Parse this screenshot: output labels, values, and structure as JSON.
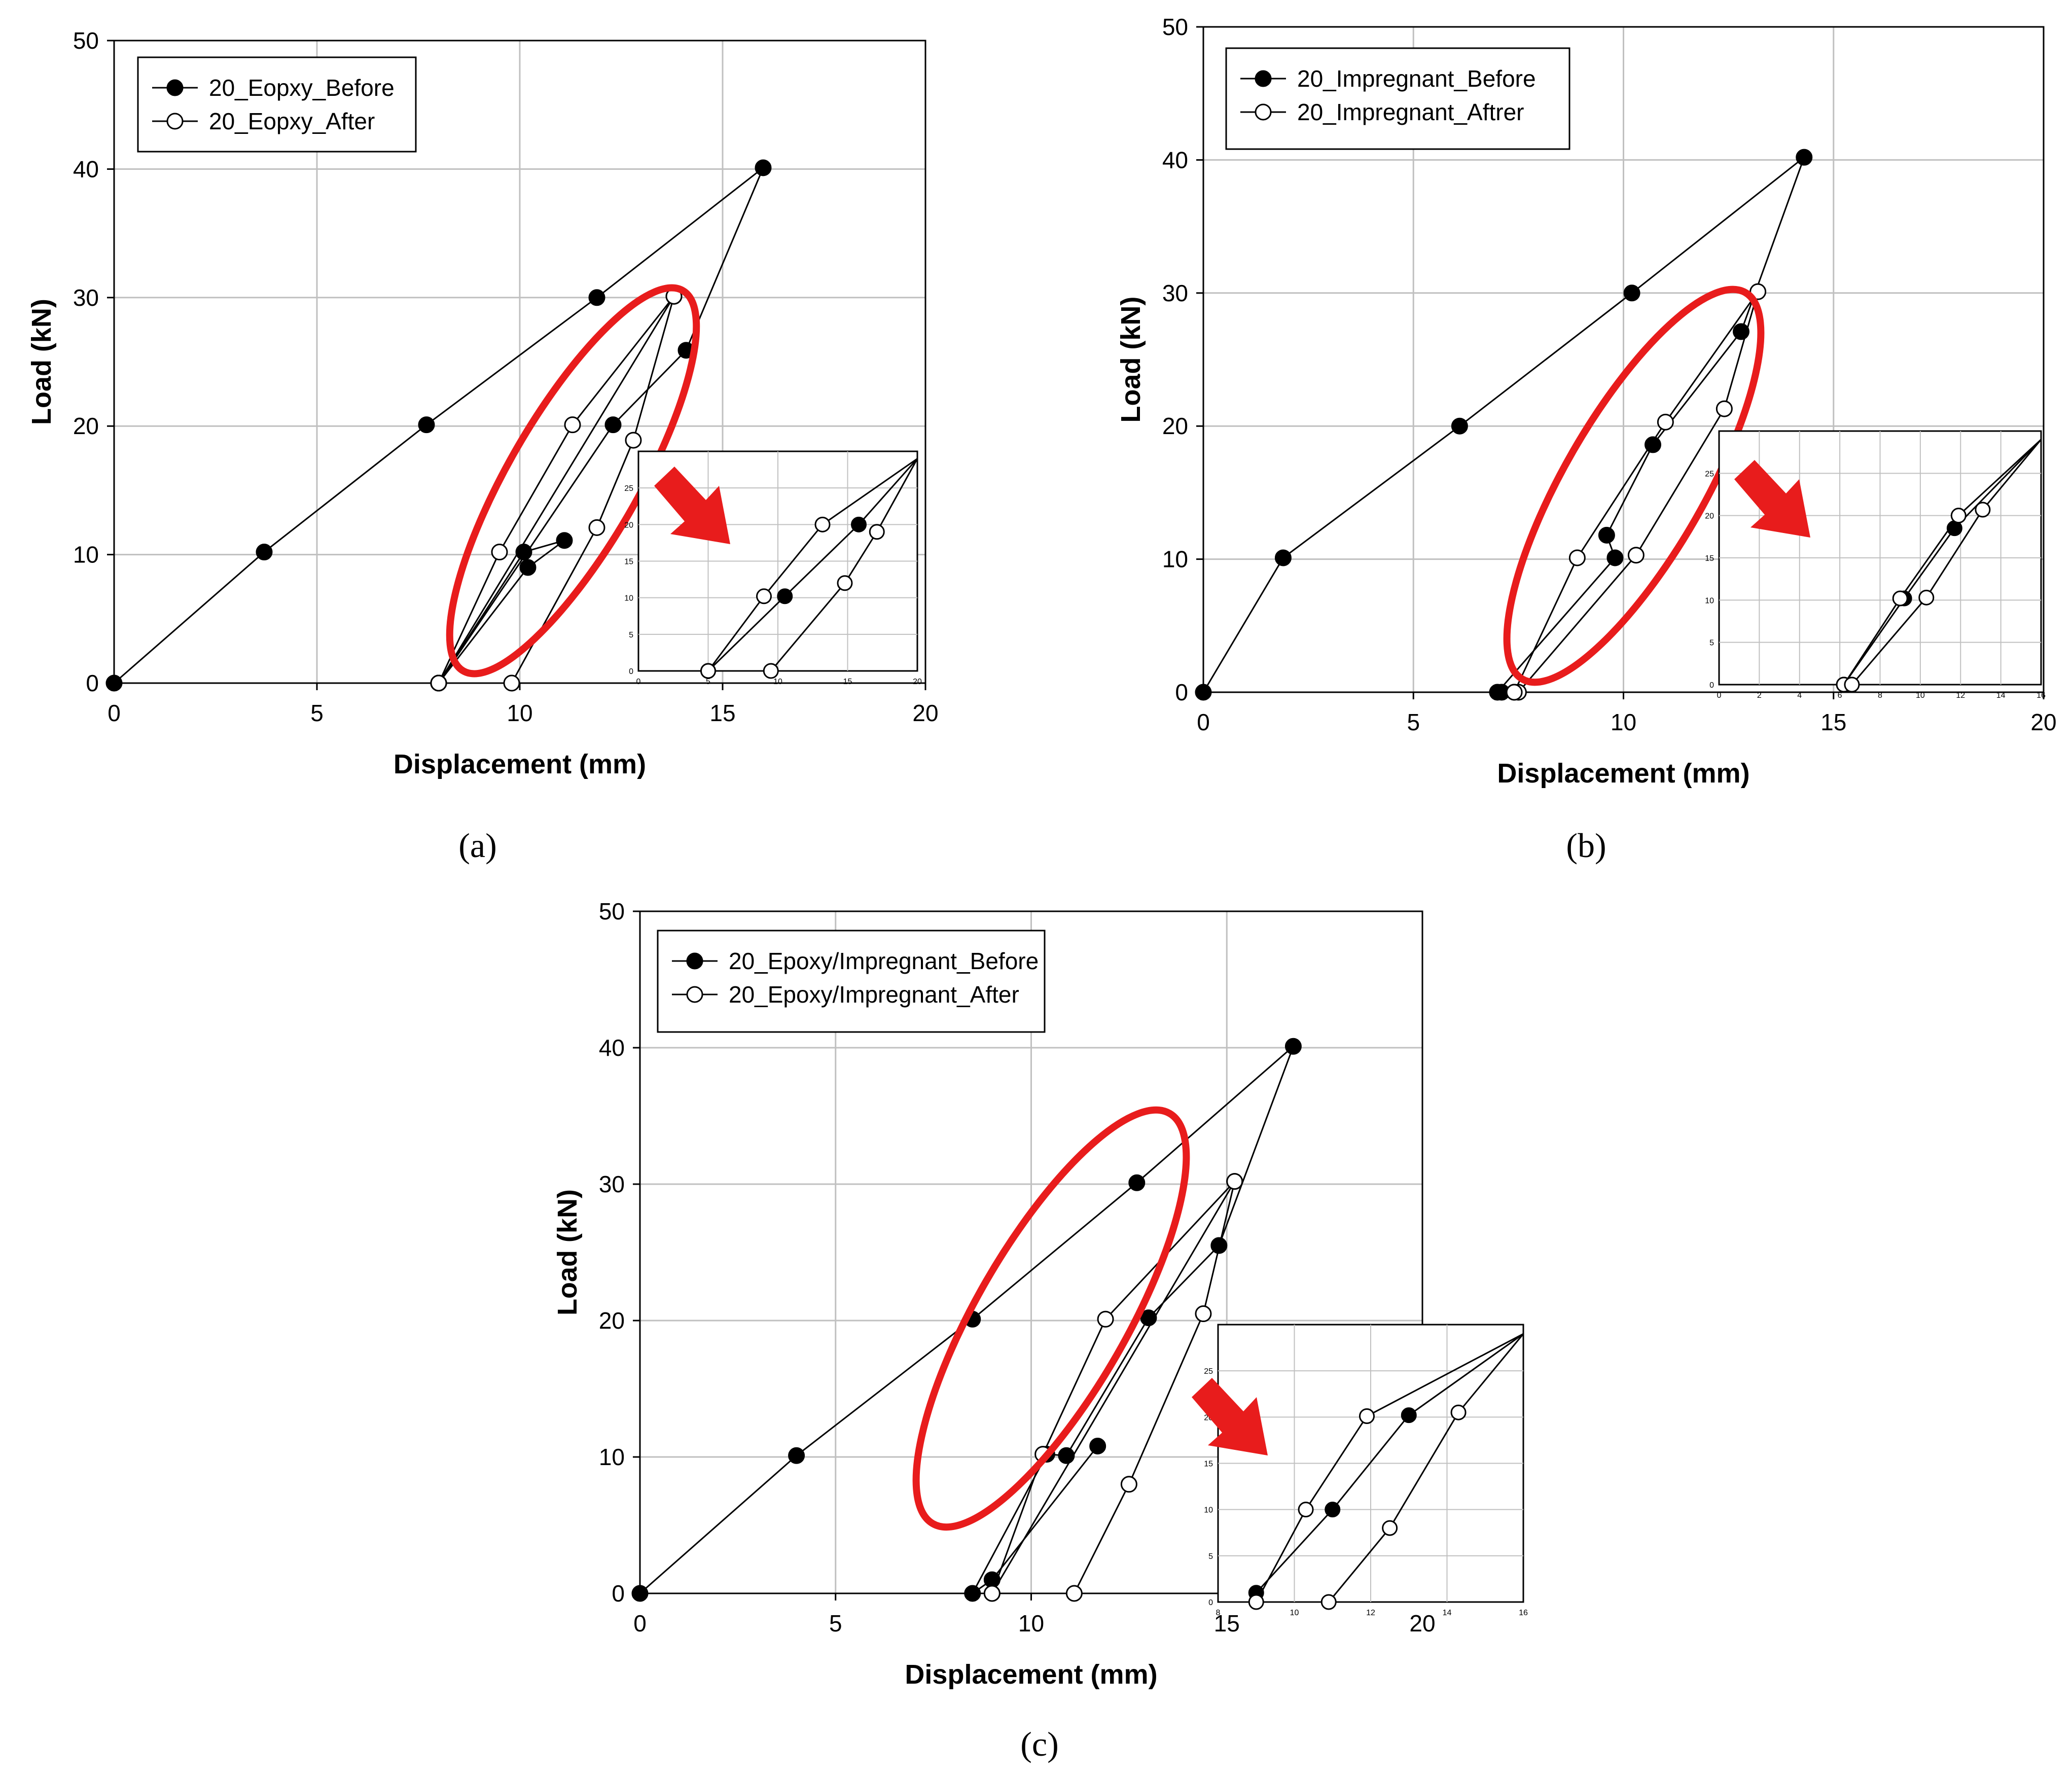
{
  "figure": {
    "sublabels": [
      "(a)",
      "(b)",
      "(c)"
    ]
  },
  "colors": {
    "highlight": "#e81c1c",
    "grid": "#c0c0c0",
    "ink": "#000000"
  },
  "chart_data": [
    {
      "type": "line",
      "panel": "(a)",
      "xlabel": "Displacement (mm)",
      "ylabel": "Load (kN)",
      "xlim": [
        0,
        20
      ],
      "ylim": [
        0,
        50
      ],
      "xticks": [
        "0",
        "5",
        "10",
        "15",
        "20"
      ],
      "yticks": [
        "0",
        "10",
        "20",
        "30",
        "40",
        "50"
      ],
      "grid": true,
      "legend_position": "top-left",
      "series": [
        {
          "name": "20_Eopxy_Before",
          "marker": "filled-circle",
          "x": [
            0,
            3.7,
            7.7,
            11.9,
            16.0,
            14.1,
            12.3,
            8.0,
            10.2,
            11.1,
            10.1,
            8.0
          ],
          "y": [
            0,
            10.2,
            20.1,
            30.0,
            40.1,
            25.9,
            20.1,
            0,
            9.0,
            11.1,
            10.2,
            0
          ]
        },
        {
          "name": "20_Eopxy_After",
          "marker": "open-circle",
          "x": [
            8.0,
            13.8,
            12.8,
            11.9,
            9.8,
            8.0,
            9.5,
            11.3,
            13.8
          ],
          "y": [
            0,
            30.1,
            18.9,
            12.1,
            0,
            0,
            10.2,
            20.1,
            30.1
          ]
        }
      ],
      "inset": {
        "xlim": [
          0,
          20
        ],
        "ylim": [
          0,
          30
        ],
        "xticks": [
          "0",
          "5",
          "10",
          "15",
          "20"
        ],
        "yticks": [
          "0",
          "5",
          "10",
          "15",
          "20",
          "25"
        ],
        "series": [
          {
            "name": "Before",
            "marker": "filled-circle",
            "x": [
              5,
              10.5,
              15.8,
              20
            ],
            "y": [
              0,
              10.2,
              20,
              29
            ]
          },
          {
            "name": "After",
            "marker": "open-circle",
            "x": [
              5,
              9,
              13.2,
              20
            ],
            "y": [
              0,
              10.2,
              20,
              29
            ]
          },
          {
            "name": "After",
            "marker": "open-circle",
            "x": [
              9.5,
              14.8,
              17.1,
              20
            ],
            "y": [
              0,
              12,
              19,
              29
            ]
          }
        ]
      },
      "annotation": "red ellipse highlighting the unloading/reloading loop, arrow pointing to magnified inset"
    },
    {
      "type": "line",
      "panel": "(b)",
      "xlabel": "Displacement (mm)",
      "ylabel": "Load (kN)",
      "xlim": [
        0,
        20
      ],
      "ylim": [
        0,
        50
      ],
      "xticks": [
        "0",
        "5",
        "10",
        "15",
        "20"
      ],
      "yticks": [
        "0",
        "10",
        "20",
        "30",
        "40",
        "50"
      ],
      "grid": true,
      "legend_position": "top-left",
      "series": [
        {
          "name": "20_Impregnant_Before",
          "marker": "filled-circle",
          "x": [
            0,
            1.9,
            6.1,
            10.2,
            14.3,
            12.8,
            10.7,
            9.6,
            9.8,
            7.0,
            7.1
          ],
          "y": [
            0,
            10.1,
            20.0,
            30.0,
            40.2,
            27.1,
            18.6,
            11.8,
            10.1,
            0,
            0
          ]
        },
        {
          "name": "20_Impregnant_Aftrer",
          "marker": "open-circle",
          "x": [
            7.4,
            8.9,
            11.0,
            13.2,
            12.4,
            10.3,
            7.5,
            7.4
          ],
          "y": [
            0,
            10.1,
            20.3,
            30.1,
            21.3,
            10.3,
            0,
            0
          ]
        }
      ],
      "inset": {
        "xlim": [
          0,
          16
        ],
        "ylim": [
          0,
          30
        ],
        "xticks": [
          "0",
          "2",
          "4",
          "6",
          "8",
          "10",
          "12",
          "14",
          "16"
        ],
        "yticks": [
          "0",
          "5",
          "10",
          "15",
          "20",
          "25"
        ],
        "series": [
          {
            "name": "Before",
            "marker": "filled-circle",
            "x": [
              6.2,
              9.2,
              11.7,
              16
            ],
            "y": [
              0,
              10.2,
              18.5,
              29
            ]
          },
          {
            "name": "After",
            "marker": "open-circle",
            "x": [
              6.2,
              9.0,
              11.9,
              16
            ],
            "y": [
              0,
              10.2,
              20,
              29
            ]
          },
          {
            "name": "After",
            "marker": "open-circle",
            "x": [
              6.6,
              10.3,
              13.1,
              16
            ],
            "y": [
              0,
              10.3,
              20.7,
              29
            ]
          }
        ]
      },
      "annotation": "red ellipse highlighting the unloading/reloading loop, arrow pointing to magnified inset"
    },
    {
      "type": "line",
      "panel": "(c)",
      "xlabel": "Displacement (mm)",
      "ylabel": "Load (kN)",
      "xlim": [
        0,
        20
      ],
      "ylim": [
        0,
        50
      ],
      "xticks": [
        "0",
        "5",
        "10",
        "15",
        "20"
      ],
      "yticks": [
        "0",
        "10",
        "20",
        "30",
        "40",
        "50"
      ],
      "grid": true,
      "legend_position": "top-left",
      "series": [
        {
          "name": "20_Epoxy/Impregnant_Before",
          "marker": "filled-circle",
          "x": [
            0,
            4.0,
            8.5,
            12.7,
            16.7,
            14.8,
            13.0,
            10.9,
            10.4,
            8.5,
            9.0,
            11.7
          ],
          "y": [
            0,
            10.1,
            20.1,
            30.1,
            40.1,
            25.5,
            20.2,
            10.1,
            10.2,
            0,
            1.0,
            10.8
          ]
        },
        {
          "name": "20_Epoxy/Impregnant_After",
          "marker": "open-circle",
          "x": [
            9.0,
            15.2,
            14.4,
            12.5,
            11.1,
            9.0,
            10.3,
            11.9,
            15.2
          ],
          "y": [
            0,
            30.2,
            20.5,
            8.0,
            0,
            0,
            10.2,
            20.1,
            30.2
          ]
        }
      ],
      "inset": {
        "xlim": [
          8,
          16
        ],
        "ylim": [
          0,
          30
        ],
        "xticks": [
          "8",
          "10",
          "12",
          "14",
          "16"
        ],
        "yticks": [
          "0",
          "5",
          "10",
          "15",
          "20",
          "25"
        ],
        "series": [
          {
            "name": "Before",
            "marker": "filled-circle",
            "x": [
              9.0,
              11.0,
              13.0,
              16
            ],
            "y": [
              1,
              10,
              20.2,
              29
            ]
          },
          {
            "name": "After",
            "marker": "open-circle",
            "x": [
              9.0,
              10.3,
              11.9,
              16
            ],
            "y": [
              0,
              10,
              20.1,
              29
            ]
          },
          {
            "name": "After",
            "marker": "open-circle",
            "x": [
              10.9,
              12.5,
              14.3,
              16
            ],
            "y": [
              0,
              8,
              20.5,
              29
            ]
          }
        ]
      },
      "annotation": "red ellipse highlighting the unloading/reloading loop, arrow pointing to magnified inset"
    }
  ]
}
